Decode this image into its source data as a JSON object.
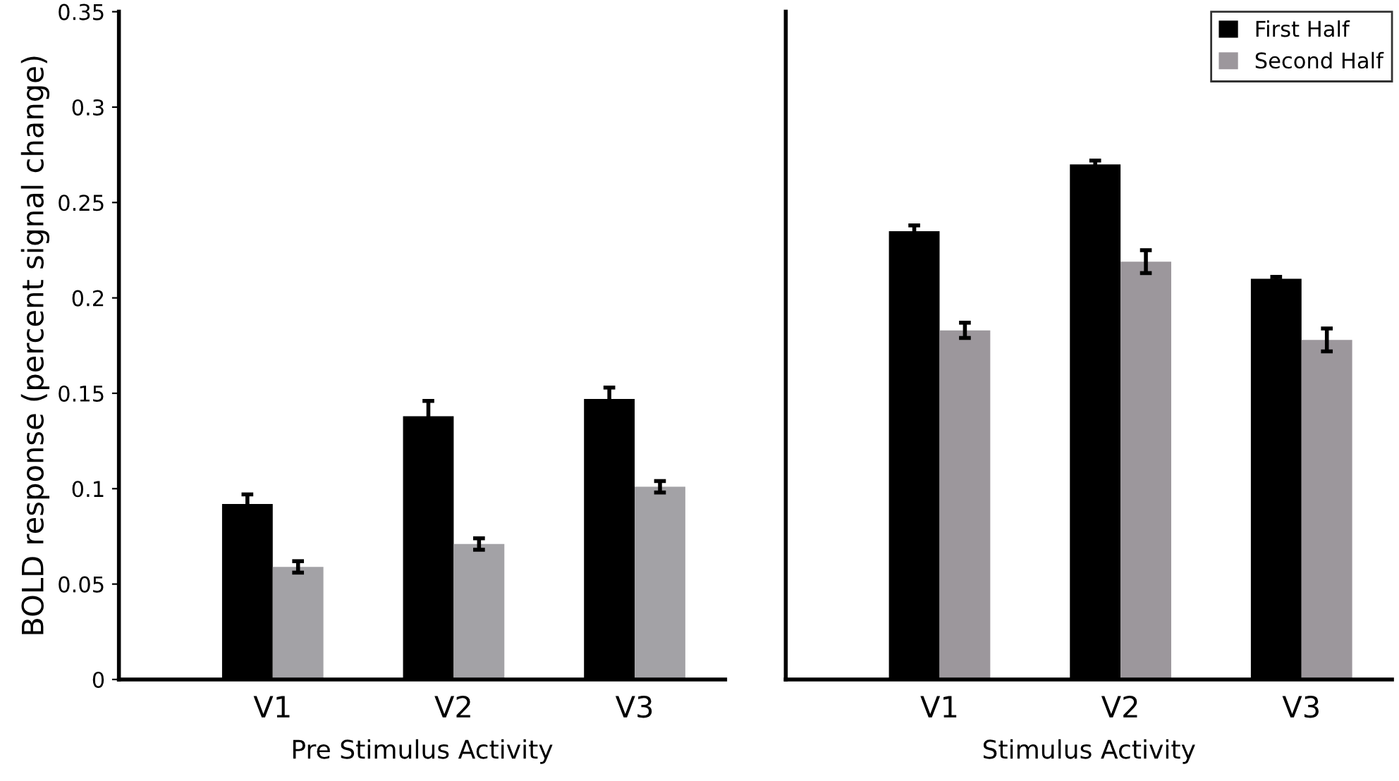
{
  "chart_data": [
    {
      "type": "bar",
      "xlabel": "Pre Stimulus Activity",
      "ylabel": "BOLD response (percent signal change)",
      "categories": [
        "V1",
        "V2",
        "V3"
      ],
      "ylim": [
        0,
        0.35
      ],
      "yticks": [
        0,
        0.05,
        0.1,
        0.15,
        0.2,
        0.25,
        0.3,
        0.35
      ],
      "grid": false,
      "series": [
        {
          "color": "#000000",
          "values": [
            0.092,
            0.138,
            0.147
          ],
          "errors": [
            0.005,
            0.008,
            0.006
          ]
        },
        {
          "color": "#a3a2a6",
          "values": [
            0.059,
            0.071,
            0.101
          ],
          "errors": [
            0.003,
            0.003,
            0.003
          ]
        }
      ]
    },
    {
      "type": "bar",
      "xlabel": "Stimulus Activity",
      "categories": [
        "V1",
        "V2",
        "V3"
      ],
      "ylim": [
        0,
        0.35
      ],
      "tick_labels": "x",
      "grid": false,
      "legend": "top right",
      "series": [
        {
          "name": "First Half",
          "color": "#000000",
          "values": [
            0.235,
            0.27,
            0.21
          ],
          "errors": [
            0.003,
            0.002,
            0.001
          ]
        },
        {
          "name": "Second Half",
          "color": "#9c979c",
          "values": [
            0.183,
            0.219,
            0.178
          ],
          "errors": [
            0.004,
            0.006,
            0.006
          ]
        }
      ]
    }
  ]
}
